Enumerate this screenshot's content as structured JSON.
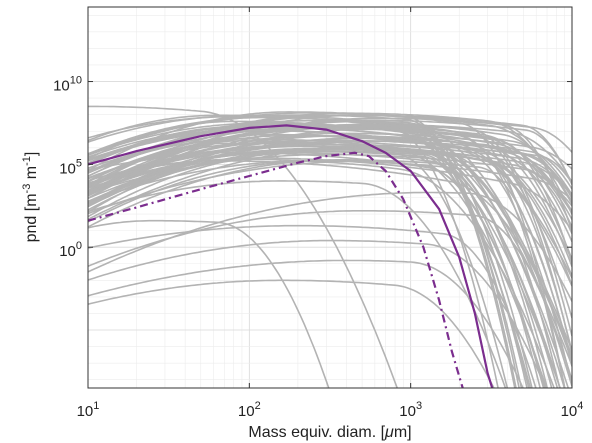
{
  "chart_data": {
    "type": "line",
    "x_scale": "log",
    "y_scale": "log",
    "xlabel_main": "Mass equiv. diam. [",
    "xlabel_mu": "μ",
    "xlabel_tail": "m]",
    "ylabel_main": "pnd [m",
    "ylabel_exp1": "-3",
    "ylabel_mid": " m",
    "ylabel_exp2": "-1",
    "ylabel_end": "]",
    "xlim": [
      10,
      10000
    ],
    "ylim_log10": [
      -8.5,
      14.5
    ],
    "x_ticks": [
      {
        "base": "10",
        "exp": "1",
        "value": 10
      },
      {
        "base": "10",
        "exp": "2",
        "value": 100
      },
      {
        "base": "10",
        "exp": "3",
        "value": 1000
      },
      {
        "base": "10",
        "exp": "4",
        "value": 10000
      }
    ],
    "y_ticks": [
      {
        "base": "10",
        "exp": "0",
        "log10": 0
      },
      {
        "base": "10",
        "exp": "5",
        "log10": 5
      },
      {
        "base": "10",
        "exp": "10",
        "log10": 10
      }
    ],
    "grid": true,
    "colors": {
      "ensemble": "#b3b3b3",
      "highlight": "#7b2d8e",
      "frame": "#333333"
    },
    "background_ensemble_note": "many grey size distribution curves",
    "highlight_series": [
      {
        "style": "solid",
        "x": [
          10,
          20,
          50,
          100,
          170,
          300,
          500,
          700,
          1000,
          1500,
          2000,
          2500,
          3000,
          3200
        ],
        "log10_y": [
          5.0,
          5.8,
          6.7,
          7.2,
          7.35,
          7.1,
          6.4,
          5.7,
          4.6,
          2.3,
          -0.6,
          -4.0,
          -7.6,
          -8.5
        ]
      },
      {
        "style": "dashed",
        "x": [
          10,
          20,
          50,
          100,
          200,
          300,
          450,
          550,
          700,
          900,
          1200,
          1500,
          1800,
          2100
        ],
        "log10_y": [
          1.6,
          2.4,
          3.5,
          4.3,
          5.1,
          5.5,
          5.7,
          5.5,
          4.6,
          2.9,
          0.0,
          -3.2,
          -6.3,
          -8.5
        ]
      }
    ]
  }
}
